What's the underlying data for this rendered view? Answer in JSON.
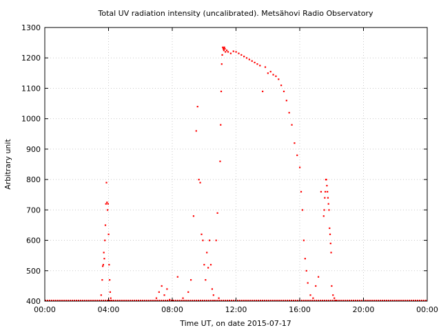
{
  "chart_data": {
    "type": "scatter",
    "title": "Total UV radiation intensity (uncalibrated). Metsähovi Radio Observatory",
    "xlabel": "Time UT, on date 2015-07-17",
    "ylabel": "Arbitrary unit",
    "xlim": [
      "00:00",
      "24:00"
    ],
    "ylim": [
      400,
      1300
    ],
    "grid": true,
    "x_ticks": [
      "00:00",
      "04:00",
      "08:00",
      "12:00",
      "16:00",
      "20:00",
      "00:00"
    ],
    "y_ticks": [
      400,
      500,
      600,
      700,
      800,
      900,
      1000,
      1100,
      1200,
      1300
    ],
    "color": "#ff0000",
    "series": [
      {
        "x": [
          "03:32",
          "03:36",
          "03:38",
          "03:40",
          "03:42",
          "03:44",
          "03:46",
          "03:48",
          "03:50",
          "03:52",
          "03:54",
          "03:56",
          "03:58",
          "04:00",
          "04:02",
          "04:04",
          "04:06",
          "04:08",
          "04:10",
          "04:12",
          "07:00",
          "07:10",
          "07:20",
          "07:30",
          "07:40",
          "07:50",
          "08:00",
          "08:20",
          "08:40",
          "09:00",
          "09:10",
          "09:20",
          "09:30",
          "09:35",
          "09:40",
          "09:45",
          "09:50",
          "09:55",
          "10:00",
          "10:05",
          "10:10",
          "10:15",
          "10:20",
          "10:25",
          "10:30",
          "10:35",
          "10:40",
          "10:45",
          "10:50",
          "10:55",
          "11:00",
          "11:02",
          "11:04",
          "11:06",
          "11:08",
          "11:10",
          "11:12",
          "11:14",
          "11:16",
          "11:18",
          "11:20",
          "11:25",
          "11:30",
          "11:40",
          "11:50",
          "12:00",
          "12:10",
          "12:20",
          "12:30",
          "12:40",
          "12:50",
          "13:00",
          "13:10",
          "13:20",
          "13:30",
          "13:40",
          "13:50",
          "14:00",
          "14:10",
          "14:20",
          "14:30",
          "14:40",
          "14:50",
          "15:00",
          "15:10",
          "15:20",
          "15:30",
          "15:40",
          "15:50",
          "16:00",
          "16:05",
          "16:10",
          "16:15",
          "16:20",
          "16:25",
          "16:30",
          "16:40",
          "16:50",
          "17:00",
          "17:10",
          "17:20",
          "17:30",
          "17:32",
          "17:34",
          "17:36",
          "17:38",
          "17:40",
          "17:42",
          "17:44",
          "17:46",
          "17:48",
          "17:50",
          "17:52",
          "17:54",
          "17:56",
          "17:58",
          "18:00",
          "18:05",
          "18:10",
          "18:15"
        ],
        "y": [
          420,
          470,
          515,
          520,
          560,
          540,
          600,
          650,
          720,
          790,
          725,
          700,
          720,
          620,
          520,
          470,
          430,
          410,
          400,
          400,
          410,
          430,
          450,
          420,
          440,
          405,
          400,
          480,
          410,
          430,
          470,
          680,
          960,
          1040,
          800,
          790,
          620,
          600,
          520,
          470,
          560,
          510,
          600,
          520,
          440,
          420,
          400,
          600,
          690,
          410,
          860,
          980,
          1090,
          1180,
          1210,
          1235,
          1230,
          1225,
          1235,
          1230,
          1220,
          1225,
          1220,
          1215,
          1222,
          1220,
          1215,
          1210,
          1205,
          1200,
          1195,
          1190,
          1185,
          1180,
          1175,
          1090,
          1170,
          1150,
          1155,
          1145,
          1140,
          1130,
          1110,
          1090,
          1060,
          1020,
          980,
          920,
          880,
          840,
          760,
          700,
          600,
          540,
          500,
          460,
          420,
          410,
          450,
          480,
          760,
          680,
          700,
          740,
          760,
          800,
          800,
          780,
          760,
          740,
          720,
          700,
          640,
          620,
          590,
          560,
          450,
          420,
          410,
          400
        ]
      }
    ]
  }
}
